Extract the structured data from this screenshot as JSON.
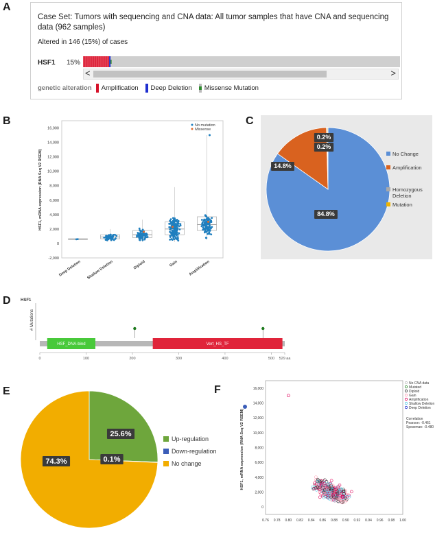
{
  "panels": {
    "a": "A",
    "b": "B",
    "c": "C",
    "d": "D",
    "e": "E",
    "f": "F"
  },
  "panelA": {
    "case_set": "Case Set: Tumors with sequencing and CNA data: All tumor samples that have CNA and sequencing data (962 samples)",
    "altered": "Altered in 146 (15%) of cases",
    "gene": "HSF1",
    "percent": "15%",
    "altered_fraction": 0.15,
    "legend_title": "genetic alteration",
    "legend": [
      {
        "label": "Amplification",
        "color": "#d6122a"
      },
      {
        "label": "Deep Deletion",
        "color": "#1f2fcf"
      },
      {
        "label": "Missense Mutation",
        "color": "#2e8b2e"
      }
    ],
    "scroll_left": "<",
    "scroll_right": ">"
  },
  "chart_data": [
    {
      "id": "B",
      "type": "scatter",
      "title": "",
      "xlabel": "",
      "ylabel": "HSF1, mRNA expression (RNA Seq V2 RSEM)",
      "categories": [
        "Deep Deletion",
        "Shallow Deletion",
        "Diploid",
        "Gain",
        "Amplification"
      ],
      "yticks": [
        "16,000",
        "14,000",
        "12,000",
        "10,000",
        "8,000",
        "6,000",
        "4,000",
        "2,000",
        "0",
        "-2,000"
      ],
      "ylim": [
        -2000,
        17000
      ],
      "legend": [
        "No mutation",
        "Missense"
      ],
      "colors": {
        "no_mutation": "#1f7fbf",
        "missense": "#e06b2e"
      },
      "box_summary": [
        {
          "category": "Deep Deletion",
          "q1": 550,
          "median": 600,
          "q3": 650,
          "min": 500,
          "max": 700
        },
        {
          "category": "Shallow Deletion",
          "q1": 650,
          "median": 900,
          "q3": 1200,
          "min": 300,
          "max": 2000
        },
        {
          "category": "Diploid",
          "q1": 800,
          "median": 1200,
          "q3": 1800,
          "min": 200,
          "max": 3300
        },
        {
          "category": "Gain",
          "q1": 1200,
          "median": 2000,
          "q3": 3000,
          "min": 200,
          "max": 7800
        },
        {
          "category": "Amplification",
          "q1": 1800,
          "median": 2600,
          "q3": 3700,
          "min": 500,
          "max": 15000
        }
      ]
    },
    {
      "id": "C",
      "type": "pie",
      "labels": [
        "No Change",
        "Amplification",
        "Homozygous Deletion",
        "Mutation"
      ],
      "values": [
        84.8,
        14.8,
        0.2,
        0.2
      ],
      "value_labels": [
        "84.8%",
        "14.8%",
        "0.2%",
        "0.2%"
      ],
      "colors": [
        "#5b8fd6",
        "#d9621f",
        "#a9a9a9",
        "#f0b400"
      ]
    },
    {
      "id": "D",
      "type": "lollipop",
      "gene": "HSF1",
      "ylabel": "# Mutations",
      "domains": [
        {
          "name": "HSF_DNA-bind",
          "start": 16,
          "end": 120,
          "color": "#48c93a"
        },
        {
          "name": "Vert_HS_TF",
          "start": 244,
          "end": 524,
          "color": "#e0243a"
        }
      ],
      "mutations": [
        {
          "pos": 205,
          "count": 1
        },
        {
          "pos": 482,
          "count": 1
        }
      ],
      "xticks": [
        "0",
        "100",
        "200",
        "300",
        "400",
        "500",
        "529 aa"
      ],
      "length": 529
    },
    {
      "id": "E",
      "type": "pie",
      "labels": [
        "Up-regulation",
        "Down-regulation",
        "No change"
      ],
      "values": [
        25.6,
        0.1,
        74.3
      ],
      "value_labels": [
        "25.6%",
        "0.1%",
        "74.3%"
      ],
      "colors": [
        "#6ea63c",
        "#3b5db8",
        "#f2ad00"
      ]
    },
    {
      "id": "F",
      "type": "scatter",
      "ylabel": "HSF1, mRNA expression (RNA Seq V2 RSEM)",
      "yticks": [
        "16,000",
        "14,000",
        "12,000",
        "10,000",
        "8,000",
        "6,000",
        "4,000",
        "2,000",
        "0"
      ],
      "xticks": [
        "0.76",
        "0.78",
        "0.80",
        "0.82",
        "0.84",
        "0.86",
        "0.88",
        "0.90",
        "0.92",
        "0.94",
        "0.96",
        "0.98",
        "1.00"
      ],
      "xlim": [
        0.76,
        1.0
      ],
      "ylim": [
        -1000,
        17000
      ],
      "legend": [
        {
          "label": "No CNA data",
          "color": "#bdbdbd"
        },
        {
          "label": "Mutated",
          "color": "#2e8b2e"
        },
        {
          "label": "Diploid",
          "color": "#333333"
        },
        {
          "label": "Gain",
          "color": "#ff9eb5"
        },
        {
          "label": "Amplification",
          "color": "#e0005a"
        },
        {
          "label": "Shallow Deletion",
          "color": "#55c8e8"
        },
        {
          "label": "Deep Deletion",
          "color": "#1f2fcf"
        }
      ],
      "correlation": [
        "Correlation",
        "Pearson: -0.461",
        "Spearman: -0.480"
      ]
    }
  ]
}
